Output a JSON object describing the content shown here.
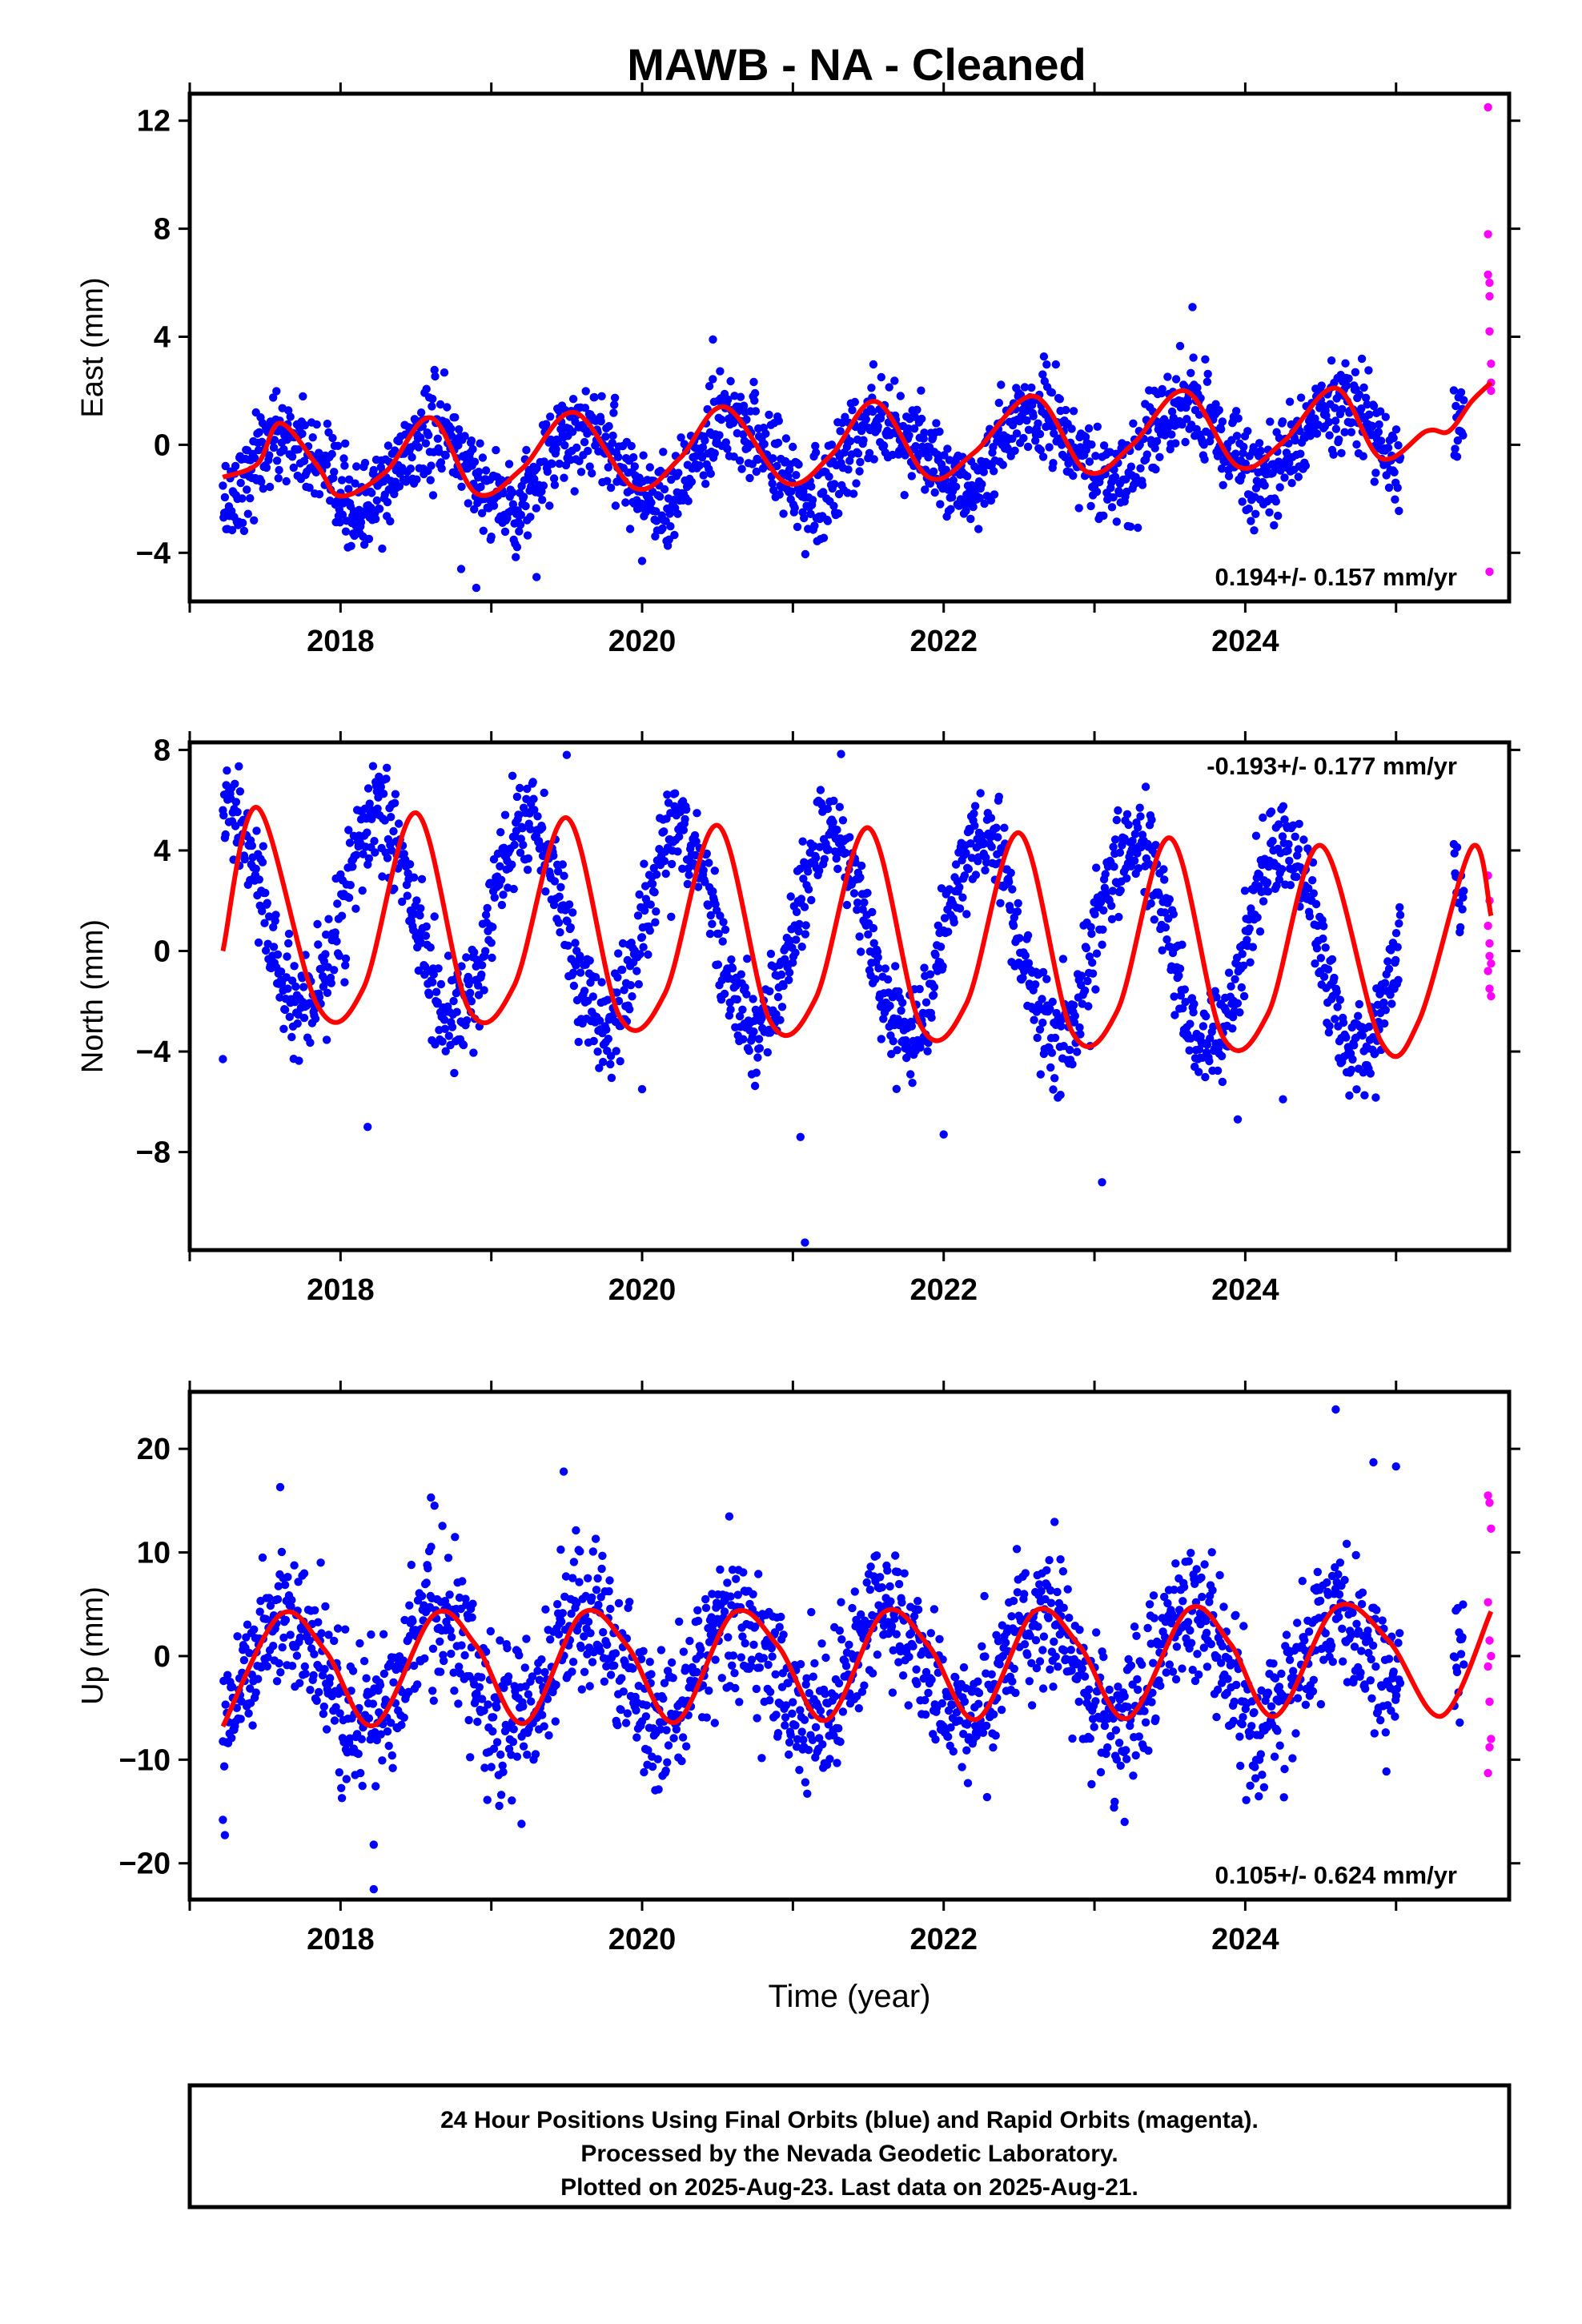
{
  "chart_data": [
    {
      "type": "scatter",
      "title": "MAWB  - NA - Cleaned",
      "ylabel": "East (mm)",
      "xlabel": "",
      "xlim": [
        2017.0,
        2025.75
      ],
      "ylim": [
        -5.8,
        13.0
      ],
      "yticks": [
        -4,
        0,
        4,
        8,
        12
      ],
      "yticklabels": [
        "−4",
        "0",
        "4",
        "8",
        "12"
      ],
      "xticks": [
        2018,
        2020,
        2022,
        2024
      ],
      "xticklabels": [
        "2018",
        "2020",
        "2022",
        "2024"
      ],
      "rate_label": "0.194+/- 0.157 mm/yr",
      "rate_position": "bottom-right",
      "series": [
        {
          "name": "Final Orbits",
          "color": "#0000ff",
          "kind": "points",
          "start": 2017.22,
          "end": 2025.45,
          "gap": [
            2025.03,
            2025.38
          ],
          "trend": 0.194,
          "offset": -1.2,
          "amp": 1.4,
          "phase": 0.62,
          "noise": 0.85,
          "outliers": [
            [
              2018.9,
              -5.3
            ],
            [
              2018.8,
              -4.6
            ],
            [
              2019.3,
              -4.9
            ],
            [
              2020.0,
              -4.3
            ],
            [
              2023.65,
              5.1
            ],
            [
              2020.47,
              3.9
            ]
          ]
        },
        {
          "name": "Rapid Orbits",
          "color": "#ff00ff",
          "kind": "points",
          "x": [
            2025.61,
            2025.61,
            2025.61,
            2025.62,
            2025.62,
            2025.63,
            2025.63,
            2025.62,
            2025.63,
            2025.62
          ],
          "y": [
            12.5,
            7.8,
            6.3,
            6.0,
            5.5,
            3.0,
            2.3,
            4.2,
            2.0,
            -4.7
          ]
        },
        {
          "name": "Model",
          "color": "#ff0000",
          "kind": "line",
          "knots": [
            [
              2017.22,
              -1.2
            ],
            [
              2017.45,
              -0.7
            ],
            [
              2017.6,
              0.8
            ],
            [
              2017.85,
              -0.8
            ],
            [
              2018.0,
              -1.9
            ],
            [
              2018.3,
              -1.0
            ],
            [
              2018.6,
              1.0
            ],
            [
              2018.9,
              -1.8
            ],
            [
              2019.2,
              -0.9
            ],
            [
              2019.55,
              1.2
            ],
            [
              2019.95,
              -1.6
            ],
            [
              2020.25,
              -0.5
            ],
            [
              2020.55,
              1.4
            ],
            [
              2020.95,
              -1.4
            ],
            [
              2021.25,
              -0.4
            ],
            [
              2021.55,
              1.6
            ],
            [
              2021.9,
              -1.2
            ],
            [
              2022.2,
              -0.3
            ],
            [
              2022.6,
              1.8
            ],
            [
              2022.95,
              -1.0
            ],
            [
              2023.25,
              0.0
            ],
            [
              2023.6,
              2.0
            ],
            [
              2023.95,
              -0.8
            ],
            [
              2024.25,
              0.1
            ],
            [
              2024.6,
              2.1
            ],
            [
              2024.9,
              -0.5
            ],
            [
              2025.2,
              0.5
            ],
            [
              2025.35,
              0.5
            ],
            [
              2025.5,
              1.6
            ],
            [
              2025.63,
              2.3
            ]
          ]
        }
      ]
    },
    {
      "type": "scatter",
      "title": "",
      "ylabel": "North (mm)",
      "xlabel": "",
      "xlim": [
        2017.0,
        2025.75
      ],
      "ylim": [
        -11.9,
        8.3
      ],
      "yticks": [
        -8,
        -4,
        0,
        4,
        8
      ],
      "yticklabels": [
        "−8",
        "−4",
        "0",
        "4",
        "8"
      ],
      "xticks": [
        2018,
        2020,
        2022,
        2024
      ],
      "xticklabels": [
        "2018",
        "2020",
        "2022",
        "2024"
      ],
      "rate_label": "-0.193+/- 0.177 mm/yr",
      "rate_position": "top-right",
      "series": [
        {
          "name": "Final Orbits",
          "color": "#0000ff",
          "kind": "points",
          "start": 2017.22,
          "end": 2025.45,
          "gap": [
            2025.03,
            2025.38
          ],
          "trend": -0.193,
          "offset": 1.5,
          "amp": 4.0,
          "phase": 0.25,
          "noise": 1.0,
          "outliers": [
            [
              2017.22,
              -4.3
            ],
            [
              2018.18,
              -7.0
            ],
            [
              2020.0,
              -5.5
            ],
            [
              2021.05,
              -7.4
            ],
            [
              2021.08,
              -11.6
            ],
            [
              2022.0,
              -7.3
            ],
            [
              2023.05,
              -9.2
            ],
            [
              2023.95,
              -6.7
            ],
            [
              2024.25,
              -5.9
            ],
            [
              2019.5,
              7.8
            ]
          ]
        },
        {
          "name": "Rapid Orbits",
          "color": "#ff00ff",
          "kind": "points",
          "x": [
            2025.61,
            2025.62,
            2025.62,
            2025.63,
            2025.61,
            2025.62,
            2025.63,
            2025.61,
            2025.62
          ],
          "y": [
            3.0,
            2.0,
            0.3,
            -0.5,
            -0.8,
            -1.5,
            -1.8,
            1.0,
            -0.2
          ]
        },
        {
          "name": "Model",
          "color": "#ff0000",
          "kind": "line",
          "knots": [
            [
              2017.22,
              0.0
            ],
            [
              2017.45,
              5.7
            ],
            [
              2017.85,
              -2.2
            ],
            [
              2018.15,
              -1.5
            ],
            [
              2018.5,
              5.5
            ],
            [
              2018.85,
              -2.3
            ],
            [
              2019.15,
              -1.4
            ],
            [
              2019.5,
              5.3
            ],
            [
              2019.85,
              -2.6
            ],
            [
              2020.15,
              -1.7
            ],
            [
              2020.5,
              5.0
            ],
            [
              2020.85,
              -2.8
            ],
            [
              2021.15,
              -1.9
            ],
            [
              2021.5,
              4.9
            ],
            [
              2021.85,
              -3.0
            ],
            [
              2022.15,
              -2.1
            ],
            [
              2022.5,
              4.7
            ],
            [
              2022.85,
              -3.2
            ],
            [
              2023.15,
              -2.4
            ],
            [
              2023.5,
              4.5
            ],
            [
              2023.85,
              -3.4
            ],
            [
              2024.15,
              -2.5
            ],
            [
              2024.5,
              4.2
            ],
            [
              2024.9,
              -3.6
            ],
            [
              2025.15,
              -2.8
            ],
            [
              2025.5,
              4.1
            ],
            [
              2025.63,
              1.4
            ]
          ]
        }
      ]
    },
    {
      "type": "scatter",
      "title": "",
      "ylabel": "Up (mm)",
      "xlabel": "Time (year)",
      "xlim": [
        2017.0,
        2025.75
      ],
      "ylim": [
        -23.5,
        25.5
      ],
      "yticks": [
        -20,
        -10,
        0,
        10,
        20
      ],
      "yticklabels": [
        "−20",
        "−10",
        "0",
        "10",
        "20"
      ],
      "xticks": [
        2018,
        2020,
        2022,
        2024
      ],
      "xticklabels": [
        "2018",
        "2020",
        "2022",
        "2024"
      ],
      "rate_label": "0.105+/- 0.624 mm/yr",
      "rate_position": "bottom-right",
      "series": [
        {
          "name": "Final Orbits",
          "color": "#0000ff",
          "kind": "points",
          "start": 2017.22,
          "end": 2025.45,
          "gap": [
            2025.03,
            2025.38
          ],
          "trend": 0.105,
          "offset": -1.5,
          "amp": 5.2,
          "phase": 0.62,
          "noise": 3.4,
          "outliers": [
            [
              2017.22,
              -15.8
            ],
            [
              2018.22,
              -22.5
            ],
            [
              2018.22,
              -18.2
            ],
            [
              2019.2,
              -16.2
            ],
            [
              2019.48,
              17.8
            ],
            [
              2017.6,
              16.3
            ],
            [
              2018.6,
              15.3
            ],
            [
              2024.6,
              23.8
            ],
            [
              2024.85,
              18.7
            ],
            [
              2025.0,
              18.3
            ],
            [
              2023.2,
              -16.0
            ]
          ]
        },
        {
          "name": "Rapid Orbits",
          "color": "#ff00ff",
          "kind": "points",
          "x": [
            2025.61,
            2025.62,
            2025.63,
            2025.61,
            2025.62,
            2025.63,
            2025.61,
            2025.62,
            2025.63,
            2025.62,
            2025.61
          ],
          "y": [
            15.5,
            14.8,
            12.3,
            5.2,
            1.5,
            0.0,
            -1.0,
            -4.4,
            -8.0,
            -8.8,
            -11.3
          ]
        },
        {
          "name": "Model",
          "color": "#ff0000",
          "kind": "line",
          "knots": [
            [
              2017.22,
              -6.8
            ],
            [
              2017.6,
              4.0
            ],
            [
              2017.9,
              0.5
            ],
            [
              2018.22,
              -6.7
            ],
            [
              2018.62,
              4.0
            ],
            [
              2018.9,
              1.0
            ],
            [
              2019.22,
              -6.5
            ],
            [
              2019.6,
              4.1
            ],
            [
              2019.9,
              1.0
            ],
            [
              2020.22,
              -6.4
            ],
            [
              2020.6,
              4.1
            ],
            [
              2020.9,
              1.0
            ],
            [
              2021.22,
              -6.2
            ],
            [
              2021.6,
              4.2
            ],
            [
              2021.9,
              1.0
            ],
            [
              2022.22,
              -6.1
            ],
            [
              2022.6,
              4.3
            ],
            [
              2022.9,
              1.0
            ],
            [
              2023.22,
              -6.0
            ],
            [
              2023.62,
              4.5
            ],
            [
              2023.9,
              1.2
            ],
            [
              2024.2,
              -5.8
            ],
            [
              2024.6,
              4.7
            ],
            [
              2024.95,
              1.5
            ],
            [
              2025.3,
              -5.8
            ],
            [
              2025.63,
              4.3
            ]
          ]
        }
      ]
    }
  ],
  "footer": {
    "line1": "24 Hour Positions Using Final Orbits (blue) and Rapid Orbits (magenta).",
    "line2": "Processed by the Nevada Geodetic Laboratory.",
    "line3": "Plotted on 2025-Aug-23. Last data on 2025-Aug-21."
  }
}
